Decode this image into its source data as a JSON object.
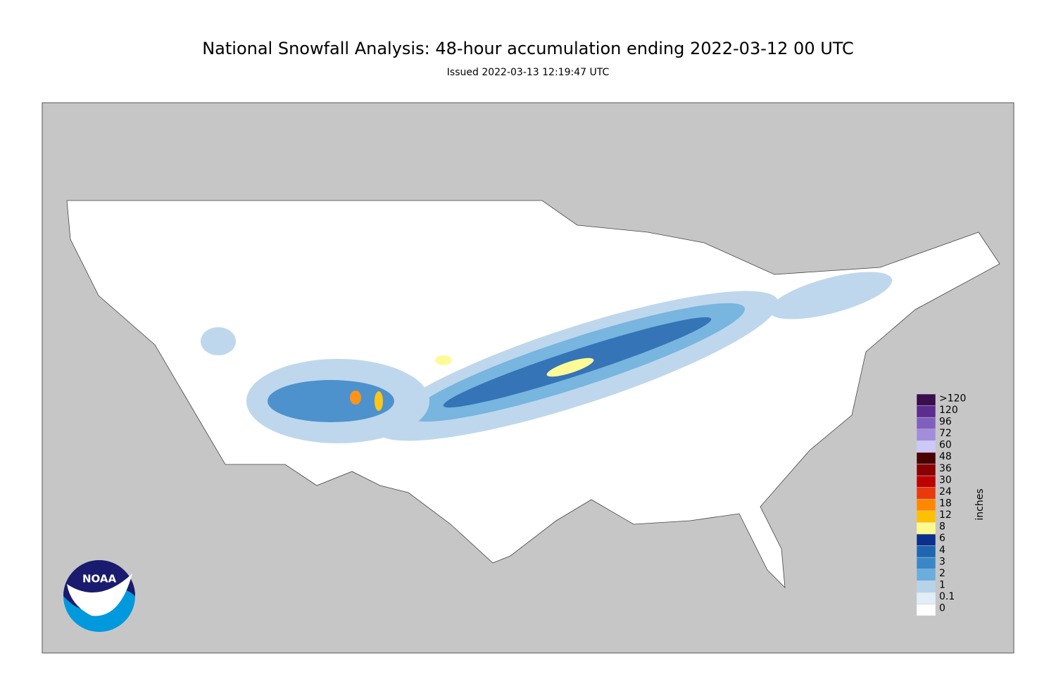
{
  "header": {
    "title": "National Snowfall Analysis: 48-hour accumulation ending 2022-03-12 00 UTC",
    "subtitle": "Issued 2022-03-13 12:19:47 UTC"
  },
  "legend": {
    "unit": "inches",
    "bins": [
      {
        "label": "0",
        "color": "#ffffff"
      },
      {
        "label": "0.1",
        "color": "#e2edf7"
      },
      {
        "label": "1",
        "color": "#b7d3ea"
      },
      {
        "label": "2",
        "color": "#6aaedc"
      },
      {
        "label": "3",
        "color": "#3a87c8"
      },
      {
        "label": "4",
        "color": "#1f66b0"
      },
      {
        "label": "6",
        "color": "#0a2f8c"
      },
      {
        "label": "8",
        "color": "#fefb8c"
      },
      {
        "label": "12",
        "color": "#ffc000"
      },
      {
        "label": "18",
        "color": "#ff8800"
      },
      {
        "label": "24",
        "color": "#e83a0c"
      },
      {
        "label": "30",
        "color": "#bf0000"
      },
      {
        "label": "36",
        "color": "#8a0000"
      },
      {
        "label": "48",
        "color": "#4a0000"
      },
      {
        "label": "60",
        "color": "#ccc8f7"
      },
      {
        "label": "72",
        "color": "#a28ddb"
      },
      {
        "label": "96",
        "color": "#8060bf"
      },
      {
        "label": "120",
        "color": "#5c2c8f"
      },
      {
        "label": ">120",
        "color": "#3a0d4f"
      }
    ]
  },
  "logo": {
    "text": "NOAA"
  }
}
